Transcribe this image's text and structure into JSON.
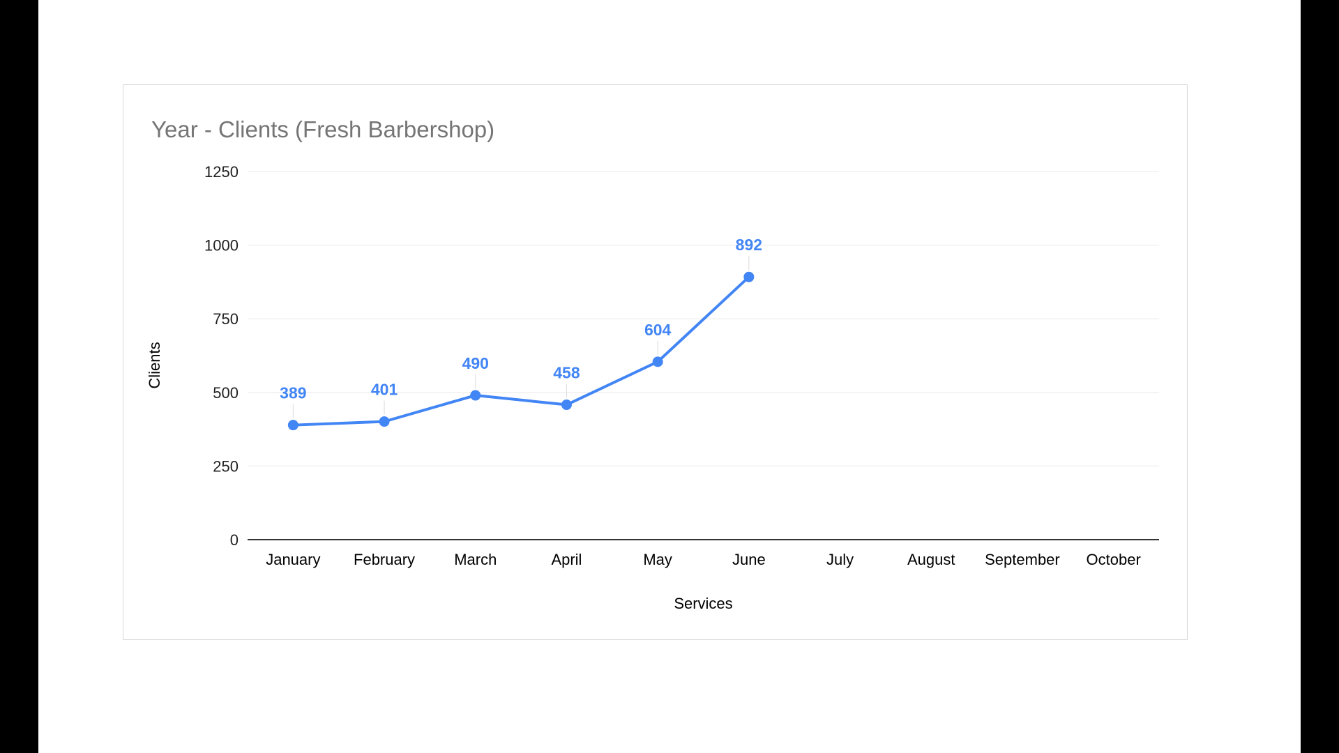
{
  "page": {
    "background_color": "#000000",
    "canvas_color": "#ffffff"
  },
  "chart_data": {
    "type": "line",
    "title": "Year - Clients (Fresh Barbershop)",
    "xlabel": "Services",
    "ylabel": "Clients",
    "categories": [
      "January",
      "February",
      "March",
      "April",
      "May",
      "June",
      "July",
      "August",
      "September",
      "October"
    ],
    "values": [
      389,
      401,
      490,
      458,
      604,
      892,
      null,
      null,
      null,
      null
    ],
    "data_labels": [
      "389",
      "401",
      "490",
      "458",
      "604",
      "892"
    ],
    "ylim": [
      0,
      1250
    ],
    "yticks": [
      0,
      250,
      500,
      750,
      1000,
      1250
    ],
    "grid": true,
    "legend_position": "none",
    "series_color": "#4285f4",
    "data_label_color": "#4285f4",
    "gridline_color": "#e9e9e9",
    "axis_line_color": "#333333",
    "tick_label_color": "#1f1f1f",
    "axis_title_color": "#000000",
    "title_color": "#757575",
    "connector_color": "#dadada"
  }
}
